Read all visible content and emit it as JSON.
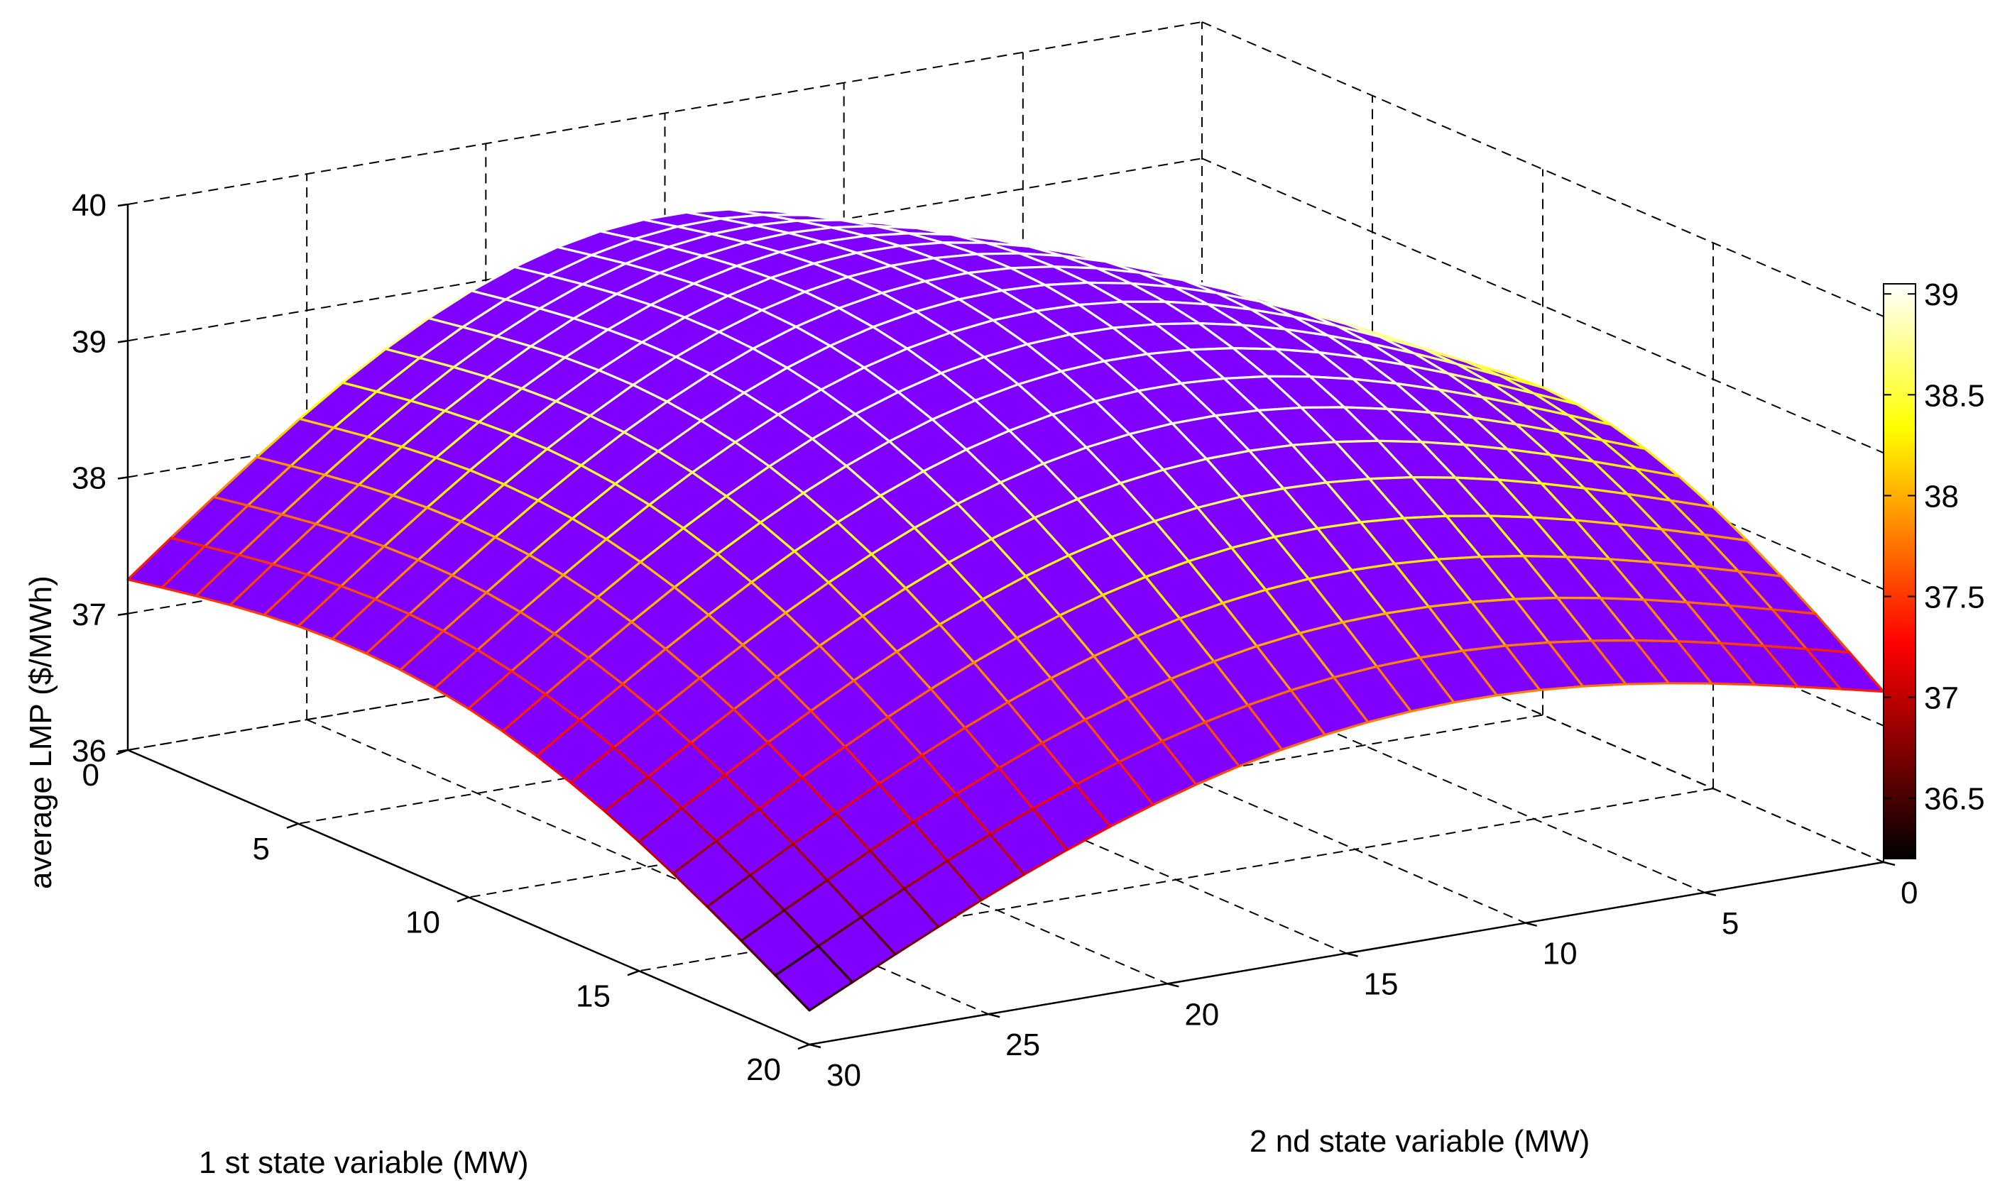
{
  "chart_data": {
    "type": "surface",
    "title": "",
    "xlabel": "1 st state variable (MW)",
    "ylabel": "2 nd state variable (MW)",
    "zlabel": "average LMP ($/MWh)",
    "x_range": [
      0,
      20
    ],
    "y_range": [
      0,
      30
    ],
    "z_range": [
      36,
      40
    ],
    "x_ticks": [
      "0",
      "5",
      "10",
      "15",
      "20"
    ],
    "y_ticks": [
      "0",
      "5",
      "10",
      "15",
      "20",
      "25",
      "30"
    ],
    "z_ticks": [
      "36",
      "37",
      "38",
      "39",
      "40"
    ],
    "grid": true,
    "surface_face_color": "#7F00FF",
    "edge_colormap": "hot",
    "colorbar": {
      "range": [
        36.2,
        39.05
      ],
      "ticks": [
        "36.5",
        "37",
        "37.5",
        "38",
        "38.5",
        "39"
      ],
      "placement": "right"
    },
    "surface_samples": [
      {
        "x": 0,
        "y": 0,
        "z": 37.25
      },
      {
        "x": 20,
        "y": 0,
        "z": 37.25
      },
      {
        "x": 0,
        "y": 30,
        "z": 37.25
      },
      {
        "x": 20,
        "y": 30,
        "z": 36.25
      },
      {
        "x": 0,
        "y": 15,
        "z": 39.1
      },
      {
        "x": 10,
        "y": 0,
        "z": 38.4
      }
    ]
  }
}
